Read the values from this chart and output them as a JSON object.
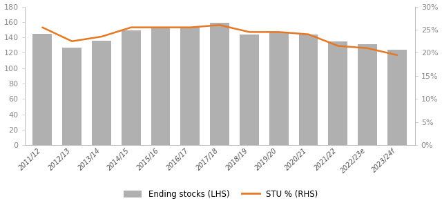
{
  "categories": [
    "2011/12",
    "2012/13",
    "2013/14",
    "2014/15",
    "2015/16",
    "2016/17",
    "2017/18",
    "2018/19",
    "2019/20",
    "2020/21",
    "2021/22",
    "2022/23e",
    "2023/24f"
  ],
  "ending_stocks": [
    145,
    127,
    136,
    149,
    153,
    153,
    159,
    144,
    147,
    144,
    135,
    131,
    124
  ],
  "stu_pct": [
    25.5,
    22.5,
    23.5,
    25.5,
    25.5,
    25.5,
    26.0,
    24.5,
    24.5,
    24.0,
    21.5,
    21.0,
    19.5
  ],
  "bar_color": "#b0b0b0",
  "line_color": "#e87722",
  "ylim_left": [
    0,
    180
  ],
  "ylim_right": [
    0,
    30
  ],
  "yticks_left": [
    0,
    20,
    40,
    60,
    80,
    100,
    120,
    140,
    160,
    180
  ],
  "yticks_right": [
    0,
    5,
    10,
    15,
    20,
    25,
    30
  ],
  "ytick_right_labels": [
    "0%",
    "5%",
    "10%",
    "15%",
    "20%",
    "25%",
    "30%"
  ],
  "legend_bar_label": "Ending stocks (LHS)",
  "legend_line_label": "STU % (RHS)",
  "background_color": "#ffffff",
  "bar_width": 0.65,
  "line_width": 1.8,
  "spine_color": "#bbbbbb",
  "tick_color": "#888888"
}
